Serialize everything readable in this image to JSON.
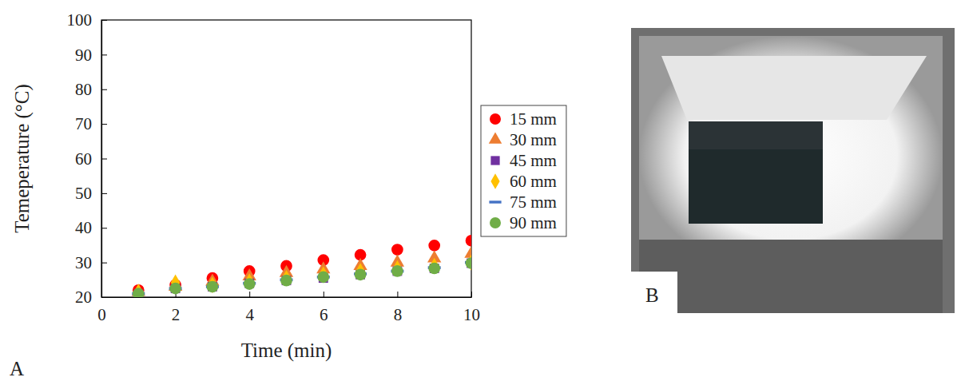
{
  "chart_data": {
    "type": "scatter",
    "panel": "A",
    "x_label": "Time (min)",
    "y_label": "Temeperature (°C)",
    "x": [
      1,
      2,
      3,
      4,
      5,
      6,
      7,
      8,
      9,
      10
    ],
    "series": [
      {
        "name": "15 mm",
        "color": "#ff0000",
        "marker": "circle",
        "values": [
          22,
          23.5,
          25.5,
          27.5,
          29,
          30.7,
          32.2,
          33.7,
          34.9,
          36.3
        ]
      },
      {
        "name": "30 mm",
        "color": "#ed7d31",
        "marker": "triangle",
        "values": [
          21.5,
          23,
          24.5,
          26,
          27,
          28,
          29,
          30,
          31.2,
          32.5
        ]
      },
      {
        "name": "45 mm",
        "color": "#7030a0",
        "marker": "square",
        "values": [
          20.8,
          22.5,
          23,
          24,
          24.8,
          25.5,
          26.5,
          27.5,
          28.3,
          29.8
        ]
      },
      {
        "name": "60 mm",
        "color": "#ffc000",
        "marker": "diamond",
        "values": [
          21.5,
          24.2,
          23.5,
          24.5,
          25.5,
          26.5,
          27.5,
          28.3,
          29,
          30
        ]
      },
      {
        "name": "75 mm",
        "color": "#4472c4",
        "marker": "dash",
        "values": [
          21,
          22.5,
          23,
          24,
          25,
          25.8,
          26.7,
          27.5,
          28.5,
          30
        ]
      },
      {
        "name": "90 mm",
        "color": "#70ad47",
        "marker": "circle",
        "values": [
          21,
          22.5,
          23,
          23.8,
          24.8,
          25.8,
          26.5,
          27.5,
          28.3,
          29.8
        ]
      }
    ],
    "xlim": [
      0,
      10
    ],
    "xticks": [
      0,
      2,
      4,
      6,
      8,
      10
    ],
    "ylim": [
      20,
      100
    ],
    "yticks": [
      20,
      30,
      40,
      50,
      60,
      70,
      80,
      90,
      100
    ],
    "grid": false,
    "legend": "right"
  },
  "photo": {
    "panel": "B"
  }
}
